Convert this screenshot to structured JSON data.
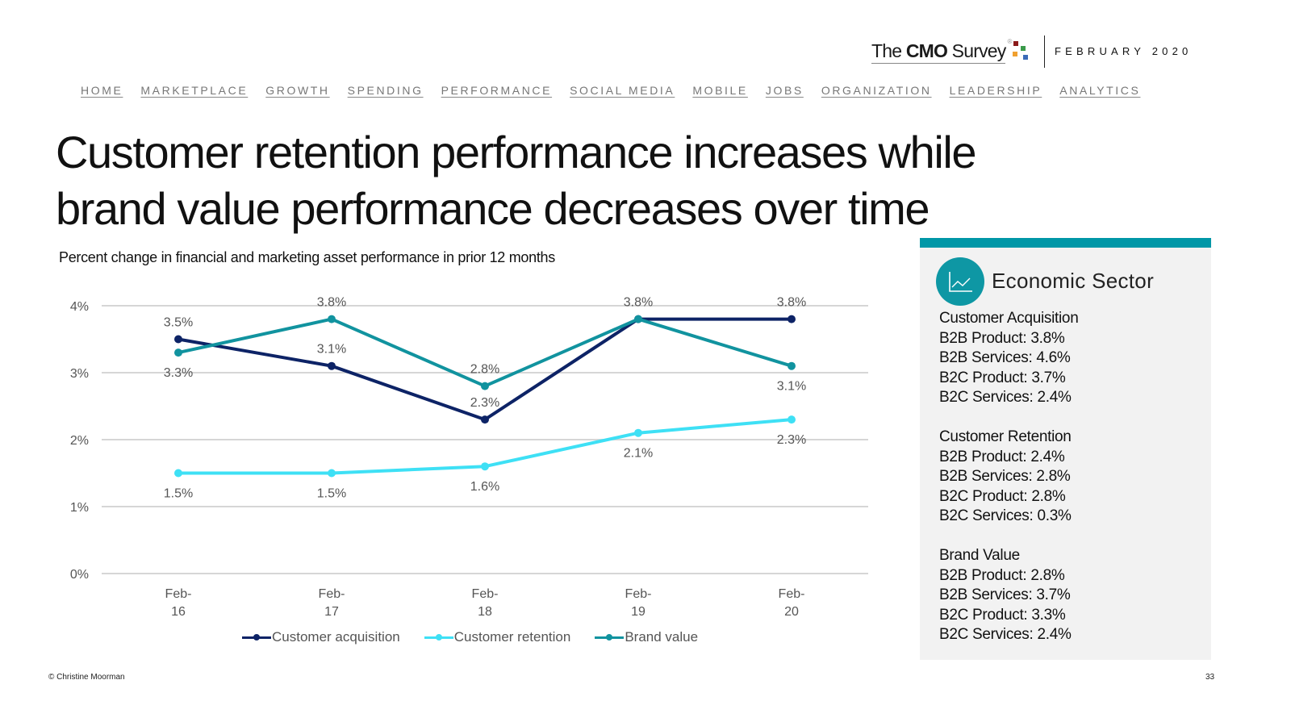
{
  "header": {
    "logo": {
      "prefix": "The ",
      "bold": "CMO",
      "suffix": " Survey",
      "mark": "®"
    },
    "date": "FEBRUARY 2020"
  },
  "nav": [
    {
      "label": "HOME"
    },
    {
      "label": "MARKETPLACE"
    },
    {
      "label": "GROWTH"
    },
    {
      "label": "SPENDING"
    },
    {
      "label": "PERFORMANCE"
    },
    {
      "label": "SOCIAL MEDIA"
    },
    {
      "label": "MOBILE"
    },
    {
      "label": "JOBS"
    },
    {
      "label": "ORGANIZATION"
    },
    {
      "label": "LEADERSHIP"
    },
    {
      "label": "ANALYTICS"
    }
  ],
  "page": {
    "title_line1": "Customer retention performance increases while",
    "title_line2": "brand value performance decreases over time",
    "subtitle": "Percent change in financial and marketing asset performance in prior 12 months"
  },
  "chart_data": {
    "type": "line",
    "title": "Percent change in financial and marketing asset performance in prior 12 months",
    "xlabel": "",
    "ylabel": "",
    "categories": [
      "Feb-16",
      "Feb-17",
      "Feb-18",
      "Feb-19",
      "Feb-20"
    ],
    "category_lines": [
      [
        "Feb-",
        "16"
      ],
      [
        "Feb-",
        "17"
      ],
      [
        "Feb-",
        "18"
      ],
      [
        "Feb-",
        "19"
      ],
      [
        "Feb-",
        "20"
      ]
    ],
    "ylim": [
      0,
      4
    ],
    "yticks": [
      0,
      1,
      2,
      3,
      4
    ],
    "ytick_labels": [
      "0%",
      "1%",
      "2%",
      "3%",
      "4%"
    ],
    "grid": true,
    "legend_position": "bottom",
    "series": [
      {
        "name": "Customer acquisition",
        "color": "#0d2366",
        "values": [
          3.5,
          3.1,
          2.3,
          3.8,
          3.8
        ],
        "labels": [
          "3.5%",
          "3.1%",
          "2.3%",
          "3.8%",
          "3.8%"
        ],
        "label_pos": [
          "above",
          "above",
          "above",
          "above",
          "above"
        ]
      },
      {
        "name": "Customer retention",
        "color": "#3ee0f5",
        "values": [
          1.5,
          1.5,
          1.6,
          2.1,
          2.3
        ],
        "labels": [
          "1.5%",
          "1.5%",
          "1.6%",
          "2.1%",
          "2.3%"
        ],
        "label_pos": [
          "below",
          "below",
          "below",
          "below",
          "below"
        ]
      },
      {
        "name": "Brand value",
        "color": "#11939f",
        "values": [
          3.3,
          3.8,
          2.8,
          3.8,
          3.1
        ],
        "labels": [
          "3.3%",
          "3.8%",
          "2.8%",
          "",
          "3.1%"
        ],
        "label_pos": [
          "below",
          "above",
          "above",
          "none",
          "below"
        ]
      }
    ]
  },
  "sidebar": {
    "title": "Economic Sector",
    "icon": "line-chart-icon",
    "accent_color": "#0097a7",
    "groups": [
      {
        "heading": "Customer Acquisition",
        "items": [
          "B2B Product: 3.8%",
          "B2B Services: 4.6%",
          "B2C Product: 3.7%",
          "B2C Services: 2.4%"
        ]
      },
      {
        "heading": "Customer Retention",
        "items": [
          "B2B Product: 2.4%",
          "B2B Services: 2.8%",
          "B2C Product: 2.8%",
          "B2C Services: 0.3%"
        ]
      },
      {
        "heading": "Brand Value",
        "items": [
          "B2B Product: 2.8%",
          "B2B Services: 3.7%",
          "B2C Product: 3.3%",
          "B2C Services: 2.4%"
        ]
      }
    ]
  },
  "footer": {
    "copyright": "© Christine Moorman",
    "page_number": "33"
  }
}
